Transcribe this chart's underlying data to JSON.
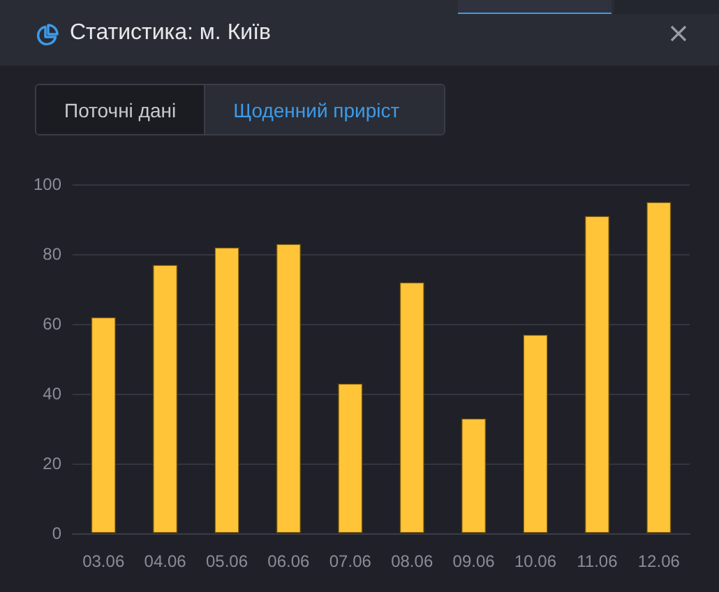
{
  "chart_data": {
    "type": "bar",
    "title": "Статистика: м. Київ",
    "annotations": [
      "Поточні дані",
      "Щоденний приріст"
    ],
    "categories": [
      "03.06",
      "04.06",
      "05.06",
      "06.06",
      "07.06",
      "08.06",
      "09.06",
      "10.06",
      "11.06",
      "12.06"
    ],
    "values": [
      62,
      77,
      82,
      83,
      43,
      72,
      33,
      57,
      91,
      95
    ],
    "color": "#ffc438",
    "ylim": [
      0,
      100
    ],
    "yticks": [
      0,
      20,
      40,
      60,
      80,
      100
    ],
    "grid": "y"
  }
}
